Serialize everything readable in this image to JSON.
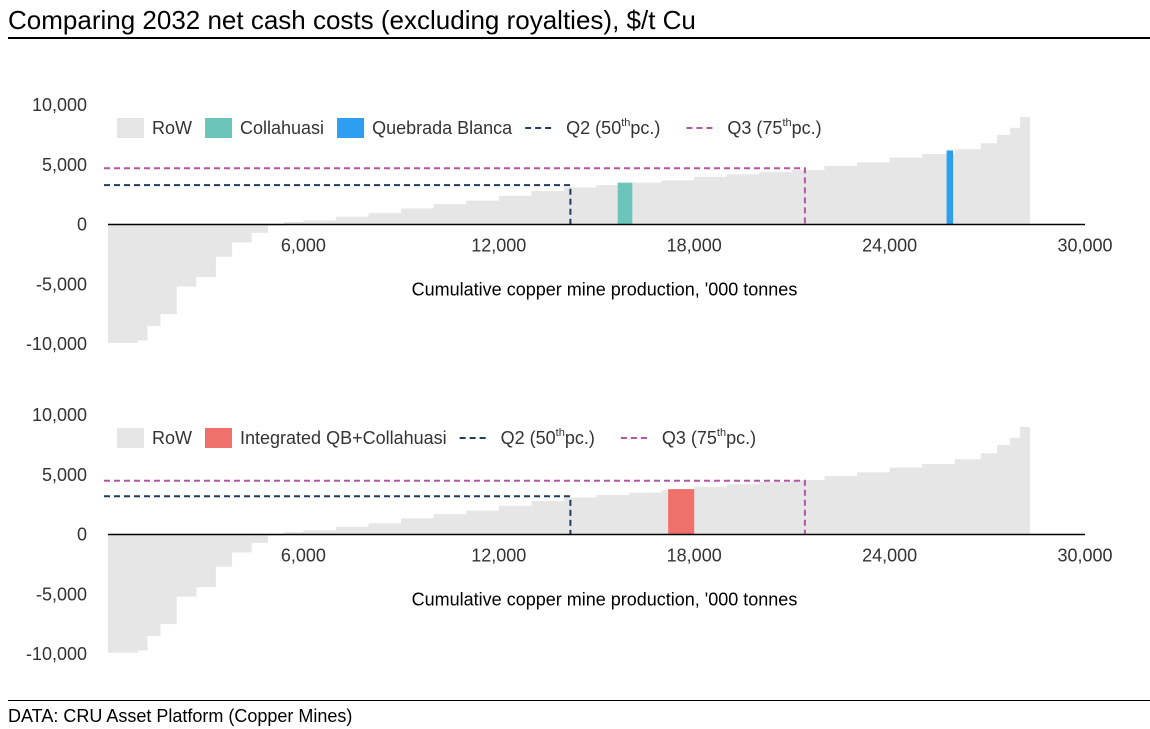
{
  "title": "Comparing 2032 net cash costs (excluding royalties), $/t Cu",
  "footer": "DATA: CRU Asset Platform (Copper Mines)",
  "colors": {
    "row": "#e6e6e6",
    "collahuasi": "#6cc5ba",
    "quebrada_blanca": "#2e9ff0",
    "integrated": "#f0716b",
    "q2": "#1f3d5c",
    "q3": "#b456a5",
    "axis": "#000000"
  },
  "chart_data": [
    {
      "type": "area",
      "subtype": "cost-curve",
      "xlabel": "Cumulative copper mine production, '000 tonnes",
      "ylabel": "",
      "xlim": [
        0,
        30000
      ],
      "ylim": [
        -10000,
        10000
      ],
      "x_ticks": [
        6000,
        12000,
        18000,
        24000,
        30000
      ],
      "x_tick_labels": [
        "6,000",
        "12,000",
        "18,000",
        "24,000",
        "30,000"
      ],
      "y_ticks": [
        10000,
        5000,
        0,
        -5000,
        -10000
      ],
      "y_tick_labels": [
        "10,000",
        "5,000",
        "0",
        "-5,000",
        "-10,000"
      ],
      "legend": {
        "placement": "top",
        "entries": [
          {
            "key": "row",
            "label": "RoW",
            "kind": "swatch"
          },
          {
            "key": "collahuasi",
            "label": "Collahuasi",
            "kind": "swatch"
          },
          {
            "key": "quebrada_blanca",
            "label": "Quebrada Blanca",
            "kind": "swatch"
          },
          {
            "key": "q2",
            "label": "Q2 (50",
            "sup": "th",
            "suffix": " pc.)",
            "kind": "dash"
          },
          {
            "key": "q3",
            "label": "Q3 (75",
            "sup": "th",
            "suffix": " pc.)",
            "kind": "dash"
          }
        ]
      },
      "row_curve": [
        [
          0,
          -9900
        ],
        [
          900,
          -9700
        ],
        [
          1200,
          -8500
        ],
        [
          1600,
          -7500
        ],
        [
          2100,
          -5200
        ],
        [
          2700,
          -4400
        ],
        [
          3300,
          -2700
        ],
        [
          3800,
          -1500
        ],
        [
          4400,
          -700
        ],
        [
          4900,
          -100
        ],
        [
          5400,
          200
        ],
        [
          6000,
          350
        ],
        [
          7000,
          650
        ],
        [
          8000,
          950
        ],
        [
          9000,
          1350
        ],
        [
          10000,
          1700
        ],
        [
          11000,
          2000
        ],
        [
          12000,
          2400
        ],
        [
          13000,
          2800
        ],
        [
          14000,
          3100
        ],
        [
          15000,
          3300
        ],
        [
          16000,
          3500
        ],
        [
          17000,
          3700
        ],
        [
          18000,
          4000
        ],
        [
          19000,
          4200
        ],
        [
          20000,
          4400
        ],
        [
          21000,
          4550
        ],
        [
          22000,
          4900
        ],
        [
          23000,
          5200
        ],
        [
          24000,
          5600
        ],
        [
          25000,
          5900
        ],
        [
          26000,
          6300
        ],
        [
          26800,
          6800
        ],
        [
          27300,
          7500
        ],
        [
          27700,
          8100
        ],
        [
          28000,
          9000
        ],
        [
          28300,
          10000
        ]
      ],
      "highlights": [
        {
          "key": "collahuasi",
          "label": "Collahuasi",
          "x0": 15650,
          "x1": 16100,
          "y": 3500
        },
        {
          "key": "quebrada_blanca",
          "label": "Quebrada Blanca",
          "x0": 25750,
          "x1": 25950,
          "y": 6200
        }
      ],
      "quartiles": [
        {
          "key": "q2",
          "label": "Q2 (50th pc.)",
          "x": 14200,
          "y": 3300
        },
        {
          "key": "q3",
          "label": "Q3 (75th pc.)",
          "x": 21400,
          "y": 4700
        }
      ]
    },
    {
      "type": "area",
      "subtype": "cost-curve",
      "xlabel": "Cumulative copper mine production, '000 tonnes",
      "ylabel": "",
      "xlim": [
        0,
        30000
      ],
      "ylim": [
        -10000,
        10000
      ],
      "x_ticks": [
        6000,
        12000,
        18000,
        24000,
        30000
      ],
      "x_tick_labels": [
        "6,000",
        "12,000",
        "18,000",
        "24,000",
        "30,000"
      ],
      "y_ticks": [
        10000,
        5000,
        0,
        -5000,
        -10000
      ],
      "y_tick_labels": [
        "10,000",
        "5,000",
        "0",
        "-5,000",
        "-10,000"
      ],
      "legend": {
        "placement": "top",
        "entries": [
          {
            "key": "row",
            "label": "RoW",
            "kind": "swatch"
          },
          {
            "key": "integrated",
            "label": "Integrated QB+Collahuasi",
            "kind": "swatch"
          },
          {
            "key": "q2",
            "label": "Q2 (50",
            "sup": "th",
            "suffix": " pc.)",
            "kind": "dash"
          },
          {
            "key": "q3",
            "label": "Q3 (75",
            "sup": "th",
            "suffix": " pc.)",
            "kind": "dash"
          }
        ]
      },
      "row_curve": [
        [
          0,
          -9900
        ],
        [
          900,
          -9700
        ],
        [
          1200,
          -8500
        ],
        [
          1600,
          -7500
        ],
        [
          2100,
          -5200
        ],
        [
          2700,
          -4400
        ],
        [
          3300,
          -2700
        ],
        [
          3800,
          -1500
        ],
        [
          4400,
          -700
        ],
        [
          4900,
          -100
        ],
        [
          5400,
          200
        ],
        [
          6000,
          350
        ],
        [
          7000,
          650
        ],
        [
          8000,
          950
        ],
        [
          9000,
          1350
        ],
        [
          10000,
          1700
        ],
        [
          11000,
          2000
        ],
        [
          12000,
          2400
        ],
        [
          13000,
          2800
        ],
        [
          14000,
          3100
        ],
        [
          15000,
          3300
        ],
        [
          16000,
          3500
        ],
        [
          17000,
          3700
        ],
        [
          18000,
          4000
        ],
        [
          19000,
          4200
        ],
        [
          20000,
          4400
        ],
        [
          21000,
          4550
        ],
        [
          22000,
          4900
        ],
        [
          23000,
          5200
        ],
        [
          24000,
          5600
        ],
        [
          25000,
          5900
        ],
        [
          26000,
          6300
        ],
        [
          26800,
          6800
        ],
        [
          27300,
          7500
        ],
        [
          27700,
          8100
        ],
        [
          28000,
          9000
        ],
        [
          28300,
          10000
        ]
      ],
      "highlights": [
        {
          "key": "integrated",
          "label": "Integrated QB+Collahuasi",
          "x0": 17200,
          "x1": 18000,
          "y": 3800
        }
      ],
      "quartiles": [
        {
          "key": "q2",
          "label": "Q2 (50th pc.)",
          "x": 14200,
          "y": 3200
        },
        {
          "key": "q3",
          "label": "Q3 (75th pc.)",
          "x": 21400,
          "y": 4500
        }
      ]
    }
  ]
}
